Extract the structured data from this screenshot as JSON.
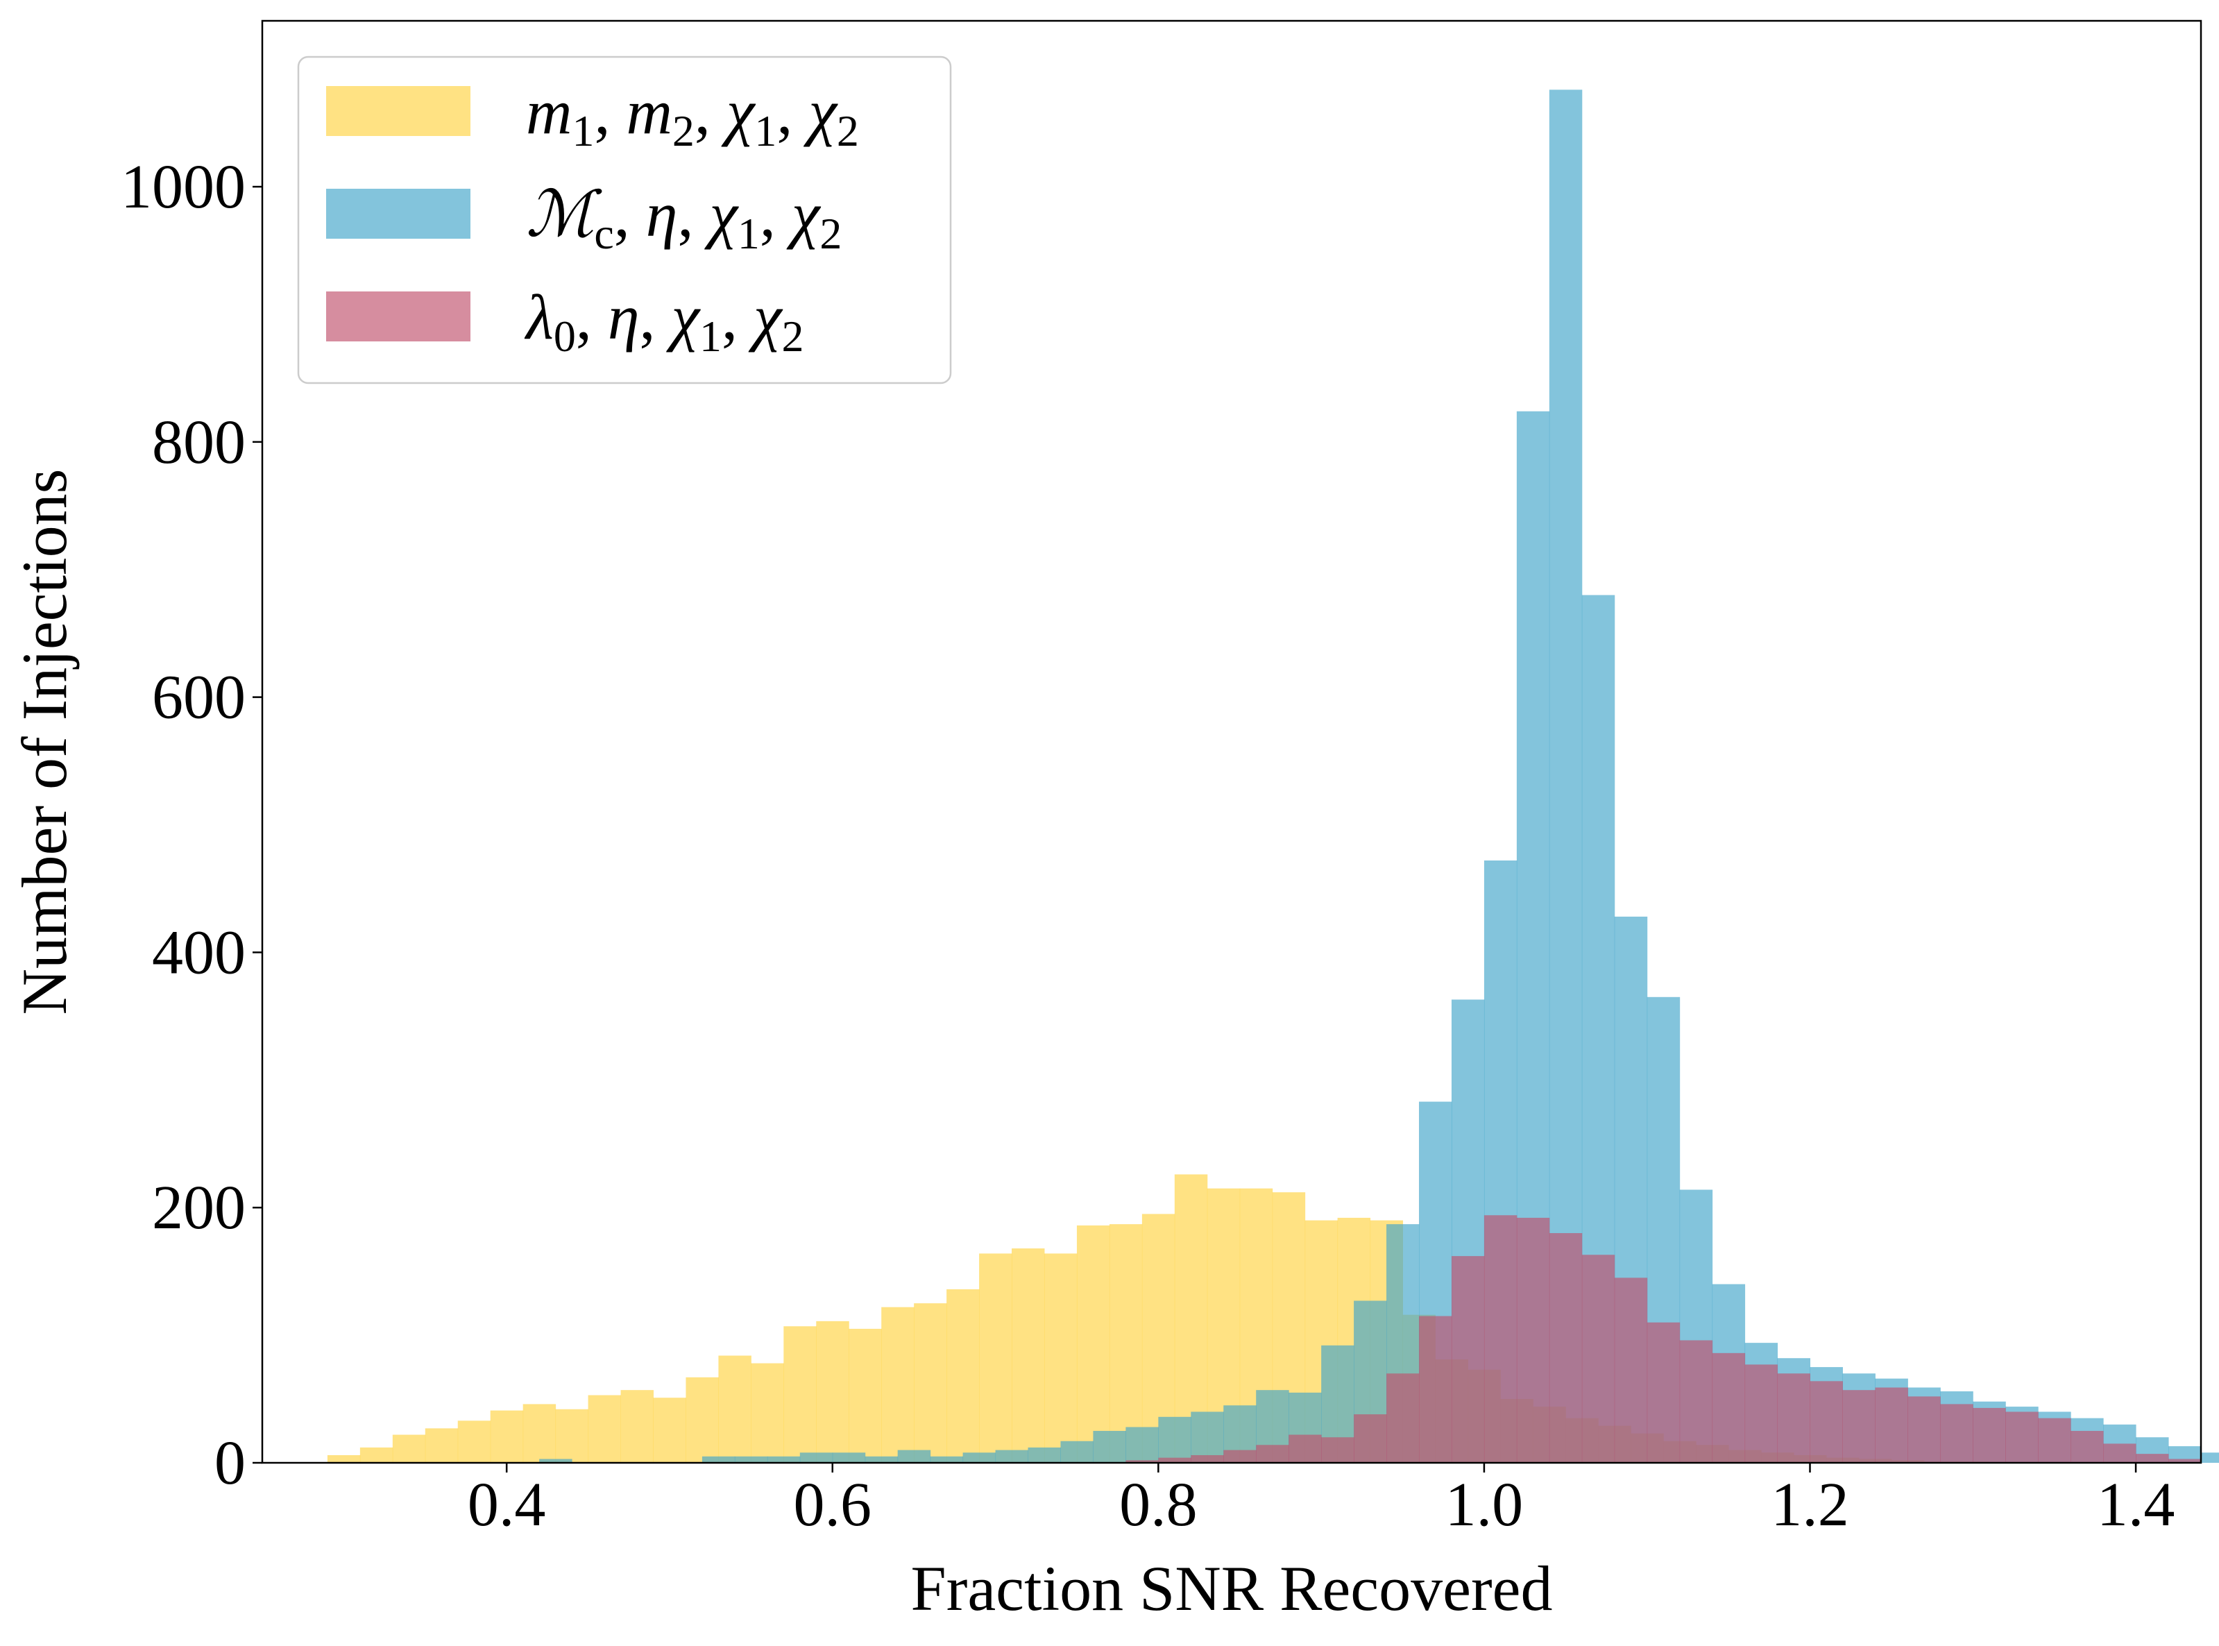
{
  "chart_data": {
    "type": "histogram",
    "title": "",
    "xlabel": "Fraction SNR Recovered",
    "ylabel": "Number of Injections",
    "xlim": [
      0.25,
      1.44
    ],
    "ylim": [
      0,
      1130
    ],
    "x_ticks": [
      0.4,
      0.6,
      0.8,
      1.0,
      1.2,
      1.4
    ],
    "x_tick_labels": [
      "0.4",
      "0.6",
      "0.8",
      "1.0",
      "1.2",
      "1.4"
    ],
    "y_ticks": [
      0,
      200,
      400,
      600,
      800,
      1000
    ],
    "y_tick_labels": [
      "0",
      "200",
      "400",
      "600",
      "800",
      "1000"
    ],
    "grid": false,
    "legend_position": "top-left",
    "series": [
      {
        "name_parts": [
          [
            "m",
            "1"
          ],
          [
            "m",
            "2"
          ],
          [
            "χ",
            "1"
          ],
          [
            "χ",
            "2"
          ]
        ],
        "color": "#FFD64F",
        "opacity": 0.7,
        "bin_start": 0.29,
        "bin_width": 0.02,
        "counts": [
          6,
          12,
          22,
          27,
          33,
          41,
          46,
          42,
          53,
          57,
          51,
          67,
          84,
          78,
          107,
          111,
          105,
          122,
          125,
          136,
          164,
          168,
          164,
          186,
          187,
          195,
          226,
          215,
          215,
          212,
          190,
          192,
          190,
          116,
          81,
          73,
          50,
          44,
          35,
          29,
          23,
          17,
          14,
          10,
          8,
          6,
          4,
          3,
          2,
          1,
          1,
          0,
          0,
          0,
          0
        ]
      },
      {
        "name_parts": [
          [
            "ℳ",
            "c"
          ],
          [
            "η",
            ""
          ],
          [
            "χ",
            "1"
          ],
          [
            "χ",
            "2"
          ]
        ],
        "color": "#41A5CA",
        "opacity": 0.65,
        "bin_start": 0.38,
        "bin_width": 0.02,
        "counts": [
          0,
          0,
          3,
          0,
          0,
          0,
          0,
          5,
          5,
          5,
          8,
          8,
          5,
          10,
          5,
          8,
          10,
          12,
          17,
          25,
          28,
          36,
          40,
          45,
          57,
          55,
          92,
          127,
          187,
          283,
          363,
          472,
          824,
          1076,
          680,
          428,
          365,
          214,
          140,
          94,
          82,
          75,
          70,
          66,
          59,
          56,
          48,
          44,
          40,
          35,
          30,
          20,
          13,
          8,
          6,
          4,
          2
        ]
      },
      {
        "name_parts": [
          [
            "λ",
            "0"
          ],
          [
            "η",
            ""
          ],
          [
            "χ",
            "1"
          ],
          [
            "χ",
            "2"
          ]
        ],
        "color": "#C0506C",
        "opacity": 0.65,
        "bin_start": 0.78,
        "bin_width": 0.02,
        "counts": [
          2,
          4,
          6,
          10,
          14,
          22,
          20,
          38,
          70,
          115,
          162,
          194,
          192,
          180,
          163,
          145,
          110,
          96,
          86,
          77,
          70,
          64,
          57,
          59,
          52,
          46,
          43,
          40,
          35,
          25,
          15,
          7,
          3
        ]
      }
    ]
  }
}
